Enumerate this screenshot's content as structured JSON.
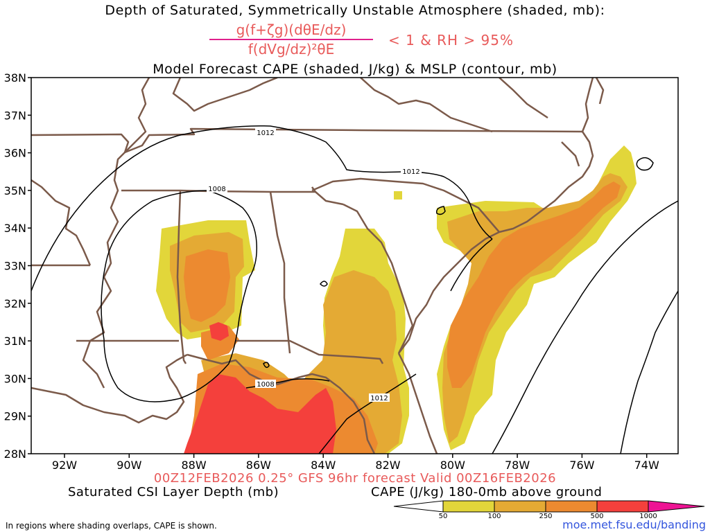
{
  "header": {
    "title_line1": "Depth of Saturated, Symmetrically Unstable Atmosphere (shaded, mb):",
    "numerator": "g(f+ζg)(dθE/dz)",
    "denominator": "f(dVg/dz)²θE",
    "condition": "< 1 & RH > 95%",
    "title_line3": "Model Forecast CAPE (shaded, J/kg) & MSLP (contour, mb)"
  },
  "map": {
    "lat_labels": [
      "38N",
      "37N",
      "36N",
      "35N",
      "34N",
      "33N",
      "32N",
      "31N",
      "30N",
      "29N",
      "28N"
    ],
    "lon_labels": [
      "92W",
      "90W",
      "88W",
      "86W",
      "84W",
      "82W",
      "80W",
      "78W",
      "76W",
      "74W"
    ],
    "isobar_labels": [
      {
        "text": "1012"
      },
      {
        "text": "1012"
      },
      {
        "text": "1008"
      },
      {
        "text": "1008"
      },
      {
        "text": "1012"
      }
    ],
    "colors": {
      "cape_50": "#e2d63a",
      "cape_100": "#e4aa34",
      "cape_250": "#ec8a30",
      "cape_500": "#f4403c",
      "cape_1000": "#ee1494",
      "borders": "#7b5a4a",
      "isobars": "#000000"
    }
  },
  "footer": {
    "valid": "00Z12FEB2026 0.25° GFS 96hr forecast Valid 00Z16FEB2026",
    "left_label": "Saturated CSI Layer Depth (mb)",
    "right_label": "CAPE (J/kg) 180-0mb above ground",
    "colorbar_labels": [
      "50",
      "100",
      "250",
      "500",
      "1000"
    ],
    "note": "In regions where shading overlaps, CAPE is shown.",
    "url": "moe.met.fsu.edu/banding"
  }
}
